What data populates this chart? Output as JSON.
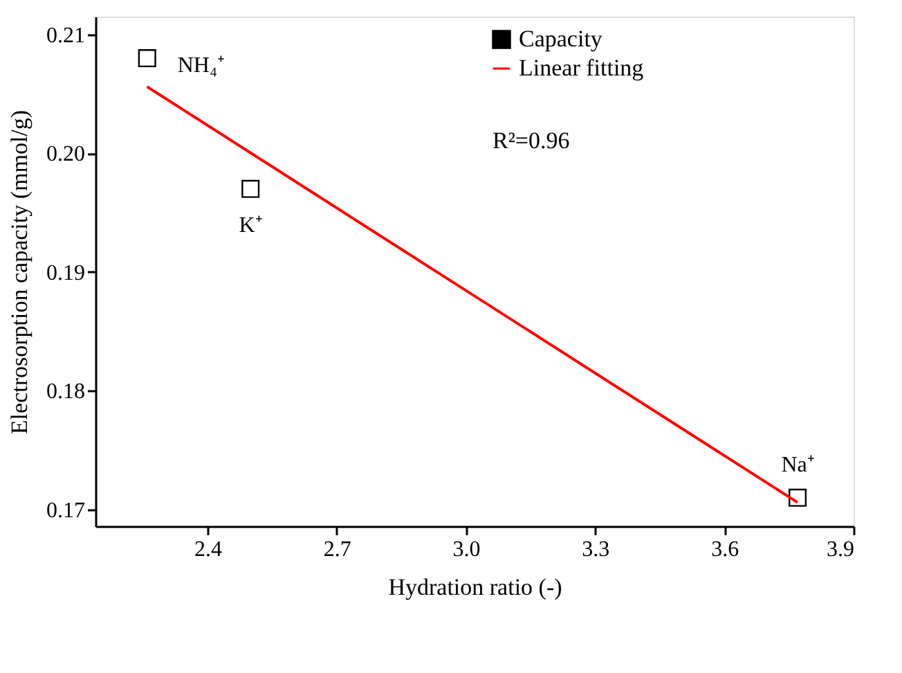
{
  "chart_data": {
    "type": "scatter",
    "xlabel": "Hydration ratio (-)",
    "ylabel": "Electrosorption capacity (mmol/g)",
    "x": [
      2.26,
      2.5,
      3.77
    ],
    "series": [
      {
        "name": "Capacity",
        "color": "#000000",
        "marker": "square",
        "values": [
          0.208,
          0.197,
          0.171
        ]
      },
      {
        "name": "Linear fitting",
        "type": "line",
        "color": "#ff0000",
        "line_style": "solid",
        "x": [
          2.26,
          3.77
        ],
        "values": [
          0.2056,
          0.1706
        ]
      }
    ],
    "xlim": [
      2.14,
      3.9
    ],
    "xticks": [
      2.4,
      2.7,
      {
        "value": 3,
        "label": "3.0"
      },
      3.3,
      3.6,
      3.9
    ],
    "ylim": [
      0.1686,
      0.2115
    ],
    "yticks": [
      0.17,
      0.18,
      0.19,
      {
        "value": 0.2,
        "label": "0.20"
      },
      0.21
    ],
    "annotations": [
      {
        "text": "NH₄⁺",
        "x": 2.26,
        "y": 0.208
      },
      {
        "text": "K⁺",
        "x": 2.5,
        "y": 0.197
      },
      {
        "text": "Na⁺",
        "x": 3.77,
        "y": 0.171
      },
      "R²=0.96"
    ],
    "grid": false,
    "legend": "top right"
  }
}
